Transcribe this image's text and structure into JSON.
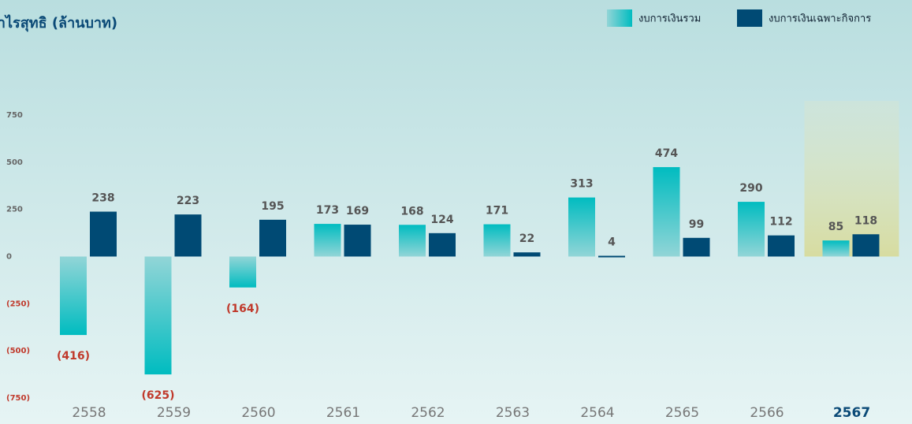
{
  "chart_data": {
    "type": "bar",
    "title": "กำไรสุทธิ (ล้านบาท)",
    "categories": [
      "2558",
      "2559",
      "2560",
      "2561",
      "2562",
      "2563",
      "2564",
      "2565",
      "2566",
      "2567"
    ],
    "series": [
      {
        "name": "งบการเงินรวม",
        "color": "#00bcc0",
        "values": [
          -416,
          -625,
          -164,
          173,
          168,
          171,
          313,
          474,
          290,
          85
        ],
        "value_labels": [
          "(416)",
          "(625)",
          "(164)",
          "173",
          "168",
          "171",
          "313",
          "474",
          "290",
          "85"
        ]
      },
      {
        "name": "งบการเงินเฉพาะกิจการ",
        "color": "#004a74",
        "values": [
          238,
          223,
          195,
          169,
          124,
          22,
          4,
          99,
          112,
          118
        ]
      }
    ],
    "ylim": [
      -750,
      750
    ],
    "yticks": [
      750,
      500,
      250,
      0,
      {
        "value": -250,
        "label": "(250)"
      },
      {
        "value": -500,
        "label": "(500)"
      },
      {
        "value": -750,
        "label": "(750)"
      }
    ],
    "highlight_index": 9,
    "legend": "top-right"
  }
}
